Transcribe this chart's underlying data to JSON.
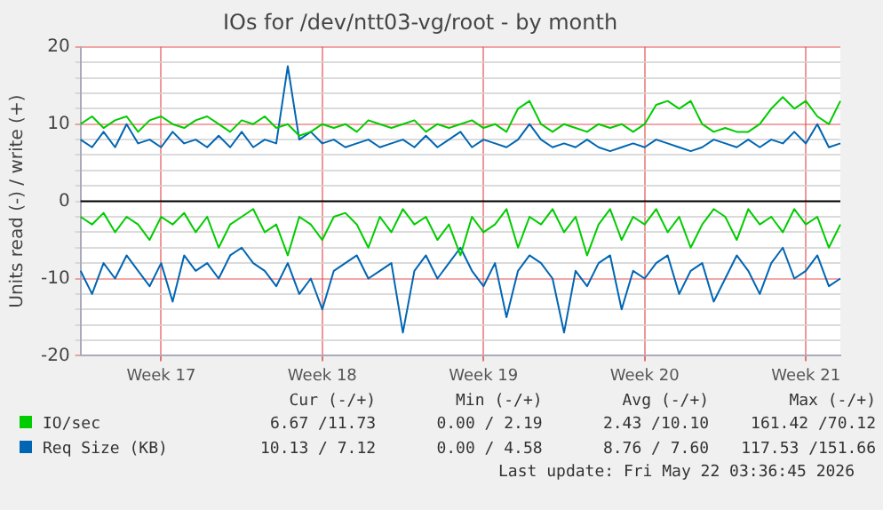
{
  "chart_data": {
    "type": "line",
    "title": "IOs for /dev/ntt03-vg/root - by month",
    "ylabel": "Units read (-) / write (+)",
    "categories": [
      null,
      null,
      null,
      null,
      null,
      null,
      null,
      "Week 17",
      null,
      null,
      null,
      null,
      null,
      null,
      null,
      null,
      null,
      null,
      null,
      null,
      null,
      "Week 18",
      null,
      null,
      null,
      null,
      null,
      null,
      null,
      null,
      null,
      null,
      null,
      null,
      null,
      "Week 19",
      null,
      null,
      null,
      null,
      null,
      null,
      null,
      null,
      null,
      null,
      null,
      null,
      null,
      "Week 20",
      null,
      null,
      null,
      null,
      null,
      null,
      null,
      null,
      null,
      null,
      null,
      null,
      null,
      "Week 21",
      null,
      null,
      null
    ],
    "series": [
      {
        "name": "IO/sec",
        "color": "#00cc00",
        "values": [
          10,
          11,
          9.5,
          10.5,
          11,
          9,
          10.5,
          11,
          10,
          9.5,
          10.5,
          11,
          10,
          9,
          10.5,
          10,
          11,
          9.5,
          10,
          8.5,
          9,
          10,
          9.5,
          10,
          9,
          10.5,
          10,
          9.5,
          10,
          10.5,
          9,
          10,
          9.5,
          10,
          10.5,
          9.5,
          10,
          9,
          12,
          13,
          10,
          9,
          10,
          9.5,
          9,
          10,
          9.5,
          10,
          9,
          10,
          12.5,
          13,
          12,
          13,
          10,
          9,
          9.5,
          9,
          9,
          10,
          12,
          13.5,
          12,
          13,
          11,
          10,
          13
        ]
      },
      {
        "color": "#00cc00",
        "values": [
          -2,
          -3,
          -1.5,
          -4,
          -2,
          -3,
          -5,
          -2,
          -3,
          -1.5,
          -4,
          -2,
          -6,
          -3,
          -2,
          -1,
          -4,
          -3,
          -7,
          -2,
          -3,
          -5,
          -2,
          -1.5,
          -3,
          -6,
          -2,
          -4,
          -1,
          -3,
          -2,
          -5,
          -3,
          -7,
          -2,
          -4,
          -3,
          -1,
          -6,
          -2,
          -3,
          -1,
          -4,
          -2,
          -7,
          -3,
          -1,
          -5,
          -2,
          -3,
          -1,
          -4,
          -2,
          -6,
          -3,
          -1,
          -2,
          -5,
          -1,
          -3,
          -2,
          -4,
          -1,
          -3,
          -2,
          -6,
          -3
        ]
      },
      {
        "name": "Req Size (KB)",
        "color": "#0066b3",
        "values": [
          8,
          7,
          9,
          7,
          10,
          7.5,
          8,
          7,
          9,
          7.5,
          8,
          7,
          8.5,
          7,
          9,
          7,
          8,
          7.5,
          17.5,
          8,
          9,
          7.5,
          8,
          7,
          7.5,
          8,
          7,
          7.5,
          8,
          7,
          8.5,
          7,
          8,
          9,
          7,
          8,
          7.5,
          7,
          8,
          10,
          8,
          7,
          7.5,
          7,
          8,
          7,
          6.5,
          7,
          7.5,
          7,
          8,
          7.5,
          7,
          6.5,
          7,
          8,
          7.5,
          7,
          8,
          7,
          8,
          7.5,
          9,
          7.5,
          10,
          7,
          7.5
        ]
      },
      {
        "color": "#0066b3",
        "values": [
          -9,
          -12,
          -8,
          -10,
          -7,
          -9,
          -11,
          -8,
          -13,
          -7,
          -9,
          -8,
          -10,
          -7,
          -6,
          -8,
          -9,
          -11,
          -8,
          -12,
          -10,
          -14,
          -9,
          -8,
          -7,
          -10,
          -9,
          -8,
          -17,
          -9,
          -7,
          -10,
          -8,
          -6,
          -9,
          -11,
          -8,
          -15,
          -9,
          -7,
          -8,
          -10,
          -17,
          -9,
          -11,
          -8,
          -7,
          -14,
          -9,
          -10,
          -8,
          -7,
          -12,
          -9,
          -8,
          -13,
          -10,
          -7,
          -9,
          -12,
          -8,
          -6,
          -10,
          -9,
          -7,
          -11,
          -10
        ]
      }
    ],
    "ylim": [
      -20,
      20
    ],
    "yticks": [
      -20,
      {
        "value": -18,
        "label": null
      },
      {
        "value": -16,
        "label": null
      },
      {
        "value": -14,
        "label": null
      },
      {
        "value": -12,
        "label": null
      },
      -10,
      {
        "value": -8,
        "label": null
      },
      {
        "value": -6,
        "label": null
      },
      {
        "value": -4,
        "label": null
      },
      {
        "value": -2,
        "label": null
      },
      0,
      {
        "value": 2,
        "label": null
      },
      {
        "value": 4,
        "label": null
      },
      {
        "value": 6,
        "label": null
      },
      {
        "value": 8,
        "label": null
      },
      10,
      {
        "value": 12,
        "label": null
      },
      {
        "value": 14,
        "label": null
      },
      {
        "value": 16,
        "label": null
      },
      {
        "value": 18,
        "label": null
      },
      20
    ],
    "ref_lines": [
      {
        "axis": "y",
        "value": 0,
        "color": "#000000"
      }
    ],
    "grid": true,
    "legend": "bottom",
    "marker": "none",
    "line_style": "solid",
    "annotations": [
      "Cur (-/+)",
      "Min (-/+)",
      "Avg (-/+)",
      "Max (-/+)",
      "6.67 /11.73",
      "0.00 / 2.19",
      "2.43 /10.10",
      "161.42 /70.12",
      "10.13 / 7.12",
      "0.00 / 4.58",
      "8.76 / 7.60",
      "117.53 /151.66",
      "Last update: Fri May 22 03:36:45 2026"
    ]
  }
}
